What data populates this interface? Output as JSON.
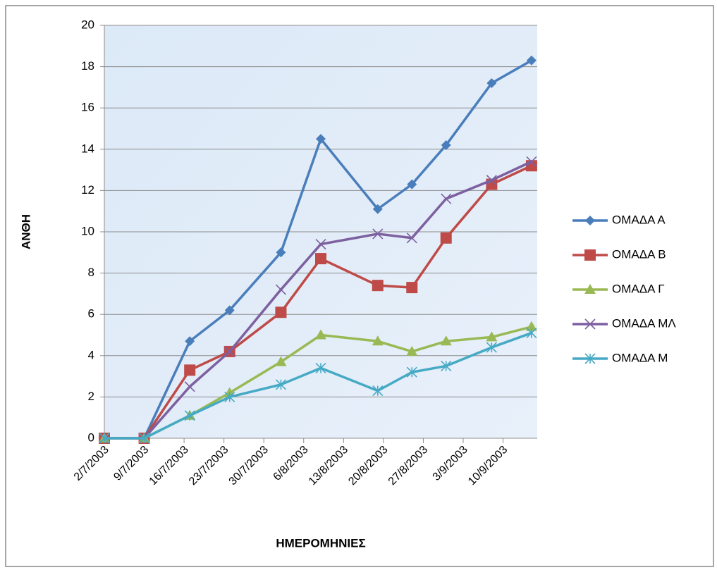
{
  "chart_data": {
    "type": "line",
    "ylabel": "ΑΝΘΗ",
    "xlabel": "ΗΜΕΡΟΜΗΝΙΕΣ",
    "x": [
      "2/7/2003",
      "9/7/2003",
      "17/7/2003",
      "24/7/2003",
      "2/8/2003",
      "9/8/2003",
      "19/8/2003",
      "25/8/2003",
      "31/8/2003",
      "8/9/2003",
      "15/9/2003"
    ],
    "series": [
      {
        "name": "ΟΜΑΔΑ Α",
        "color": "#4a7ebb",
        "marker": "diamond",
        "values": [
          0,
          0,
          4.7,
          6.2,
          9.0,
          14.5,
          11.1,
          12.3,
          14.2,
          17.2,
          18.3
        ]
      },
      {
        "name": "ΟΜΑΔΑ Β",
        "color": "#be4b48",
        "marker": "square",
        "values": [
          0,
          0,
          3.3,
          4.2,
          6.1,
          8.7,
          7.4,
          7.3,
          9.7,
          12.3,
          13.2
        ]
      },
      {
        "name": "ΟΜΑΔΑ Γ",
        "color": "#98b954",
        "marker": "triangle",
        "values": [
          0,
          0,
          1.1,
          2.2,
          3.7,
          5.0,
          4.7,
          4.2,
          4.7,
          4.9,
          5.4
        ]
      },
      {
        "name": "ΟΜΑΔΑ ΜΛ",
        "color": "#7d60a0",
        "marker": "x",
        "values": [
          0,
          0,
          2.5,
          4.2,
          7.2,
          9.4,
          9.9,
          9.7,
          11.6,
          12.5,
          13.4
        ]
      },
      {
        "name": "ΟΜΑΔΑ Μ",
        "color": "#46aac5",
        "marker": "star",
        "values": [
          0,
          0,
          1.1,
          2.0,
          2.6,
          3.4,
          2.3,
          3.2,
          3.5,
          4.4,
          5.1
        ]
      }
    ],
    "xlim": [
      "2/7/2003",
      "16/9/2003"
    ],
    "xticks": [
      "2/7/2003",
      "9/7/2003",
      "16/7/2003",
      "23/7/2003",
      "30/7/2003",
      "6/8/2003",
      "13/8/2003",
      "20/8/2003",
      "27/8/2003",
      "3/9/2003",
      "10/9/2003"
    ],
    "ylim": [
      0,
      20
    ],
    "yticks": [
      0,
      2,
      4,
      6,
      8,
      10,
      12,
      14,
      16,
      18,
      20
    ],
    "grid": true,
    "legend": "right"
  }
}
